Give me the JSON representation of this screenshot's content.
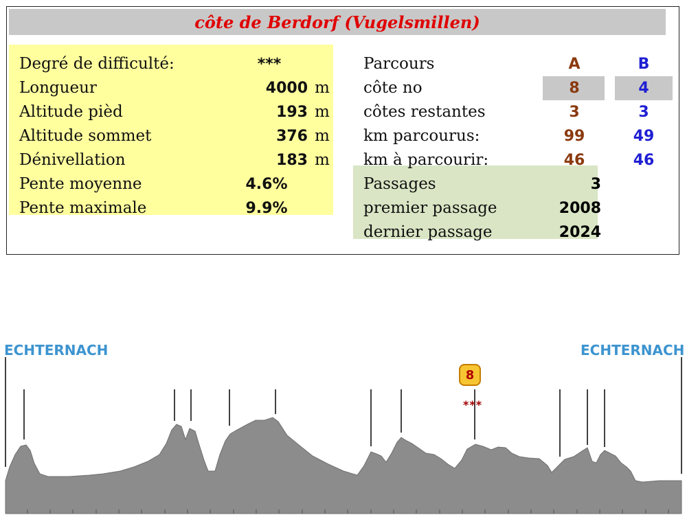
{
  "title": "côte de Berdorf (Vugelsmillen)",
  "left": {
    "difficulty_label": "Degré de difficulté:",
    "difficulty_value": "***",
    "rows": [
      {
        "label": "Longueur",
        "value": "4000",
        "unit": "m"
      },
      {
        "label": "Altitude pièd",
        "value": "193",
        "unit": "m"
      },
      {
        "label": "Altitude sommet",
        "value": "376",
        "unit": "m"
      },
      {
        "label": "Dénivellation",
        "value": "183",
        "unit": "m"
      },
      {
        "label": "Pente moyenne",
        "value": "4.6%",
        "unit": ""
      },
      {
        "label": "Pente maximale",
        "value": "9.9%",
        "unit": ""
      }
    ]
  },
  "right": {
    "header": {
      "label": "Parcours",
      "a": "A",
      "b": "B"
    },
    "rows": [
      {
        "label": "côte no",
        "a": "8",
        "b": "4"
      },
      {
        "label": "côtes restantes",
        "a": "3",
        "b": "3"
      },
      {
        "label": "km parcourus:",
        "a": "99",
        "b": "49"
      },
      {
        "label": "km à parcourir:",
        "a": "46",
        "b": "46"
      }
    ],
    "passages": [
      {
        "label": "Passages",
        "value": "3"
      },
      {
        "label": "premier passage",
        "value": "2008"
      },
      {
        "label": "dernier passage",
        "value": "2024"
      }
    ]
  },
  "profile": {
    "start_town": "ECHTERNACH",
    "end_town": "ECHTERNACH",
    "climb_badge": "8",
    "climb_stars": "***",
    "fill_color": "#8c8c8c",
    "title_color": "#e00000",
    "town_color": "#3d94d0"
  }
}
